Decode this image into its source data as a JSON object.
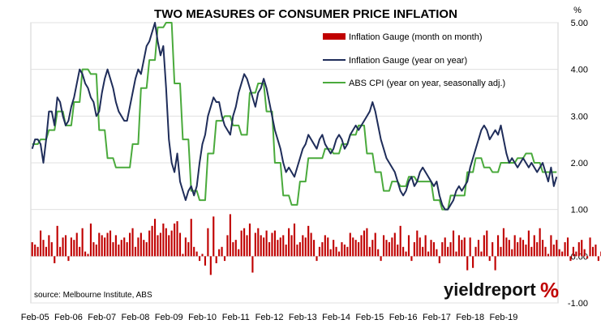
{
  "chart_data": {
    "type": "line",
    "title": "TWO MEASURES OF CONSUMER PRICE INFLATION",
    "unit_label": "%",
    "source": "source: Melbourne Institute, ABS",
    "logo": {
      "text": "yieldreport",
      "symbol": "%"
    },
    "x_tick_labels": [
      "Feb-05",
      "Feb-06",
      "Feb-07",
      "Feb-08",
      "Feb-09",
      "Feb-10",
      "Feb-11",
      "Feb-12",
      "Feb-13",
      "Feb-14",
      "Feb-15",
      "Feb-16",
      "Feb-17",
      "Feb-18",
      "Feb-19"
    ],
    "x_range": [
      "Jan-05",
      "Apr-19"
    ],
    "ylim": [
      -1.0,
      5.0
    ],
    "y_tick_labels": [
      "5.00",
      "4.00",
      "3.00",
      "2.00",
      "1.00",
      "0.00",
      "-1.00"
    ],
    "legend_position": "top-right",
    "grid": "horizontal",
    "colors": {
      "bars": "#c00000",
      "yoy": "#1f2d5a",
      "abs": "#4aaa3c"
    },
    "series": [
      {
        "name": "Inflation Gauge (month on month)",
        "type": "bar",
        "values": [
          0.3,
          0.25,
          0.2,
          0.55,
          0.35,
          0.2,
          0.45,
          0.3,
          -0.15,
          0.65,
          0.2,
          0.4,
          0.45,
          -0.1,
          0.4,
          0.35,
          0.5,
          0.2,
          0.6,
          0.1,
          0.05,
          0.7,
          0.3,
          0.25,
          0.5,
          0.45,
          0.4,
          0.5,
          0.55,
          0.3,
          0.45,
          0.25,
          0.35,
          0.4,
          0.3,
          0.5,
          0.6,
          0.2,
          0.4,
          0.5,
          0.35,
          0.3,
          0.55,
          0.65,
          0.8,
          0.45,
          0.5,
          0.7,
          0.6,
          0.45,
          0.55,
          0.7,
          0.75,
          0.5,
          0.05,
          0.4,
          0.3,
          0.8,
          0.2,
          0.1,
          -0.1,
          0.05,
          -0.2,
          0.6,
          -0.4,
          0.85,
          -0.15,
          0.15,
          0.2,
          -0.1,
          0.45,
          0.9,
          0.3,
          0.35,
          0.15,
          0.55,
          0.6,
          0.45,
          0.7,
          -0.35,
          0.5,
          0.6,
          0.45,
          0.4,
          0.55,
          0.3,
          0.5,
          0.55,
          0.35,
          0.4,
          0.45,
          0.25,
          0.6,
          0.45,
          0.7,
          0.25,
          0.3,
          0.45,
          0.4,
          0.65,
          0.5,
          0.35,
          -0.1,
          0.2,
          0.3,
          0.45,
          0.4,
          0.15,
          0.35,
          0.2,
          0.1,
          0.3,
          0.25,
          0.2,
          0.5,
          0.4,
          0.35,
          0.3,
          0.45,
          0.55,
          0.6,
          0.2,
          0.35,
          0.5,
          0.15,
          -0.1,
          0.45,
          0.35,
          0.3,
          0.4,
          0.5,
          0.25,
          0.65,
          0.2,
          0.1,
          0.45,
          -0.1,
          0.3,
          0.55,
          0.4,
          0.2,
          0.45,
          0.1,
          0.35,
          0.3,
          0.15,
          -0.15,
          0.3,
          0.4,
          0.2,
          0.3,
          0.55,
          0.1,
          0.45,
          0.35,
          0.4,
          -0.3,
          0.4,
          -0.25,
          0.2,
          0.35,
          0.1,
          0.45,
          0.55,
          -0.1,
          0.3,
          -0.3,
          0.45,
          0.2,
          0.6,
          0.4,
          0.35,
          0.15,
          0.45,
          0.3,
          0.4,
          0.35,
          0.25,
          0.55,
          0.2,
          0.45,
          0.3,
          0.6,
          0.35,
          0.2,
          0.05,
          0.45,
          0.25,
          0.35,
          0.15,
          0.1,
          0.3,
          0.4,
          -0.1,
          0.2,
          0.1,
          0.3,
          0.35,
          0.15,
          -0.05,
          0.4,
          0.2,
          0.25,
          -0.1,
          0.1,
          0.05
        ]
      },
      {
        "name": "Inflation Gauge (year on year)",
        "type": "line",
        "values": [
          2.3,
          2.5,
          2.5,
          2.4,
          2.0,
          2.5,
          3.1,
          3.1,
          2.8,
          3.4,
          3.3,
          3.0,
          2.8,
          2.9,
          3.2,
          3.4,
          3.7,
          4.0,
          3.9,
          3.7,
          3.6,
          3.4,
          3.3,
          3.0,
          3.1,
          3.5,
          3.8,
          4.0,
          3.8,
          3.6,
          3.3,
          3.1,
          3.0,
          2.9,
          2.9,
          3.2,
          3.5,
          3.8,
          4.0,
          3.9,
          4.2,
          4.5,
          4.6,
          4.8,
          5.0,
          4.6,
          4.3,
          4.5,
          3.6,
          2.5,
          2.0,
          1.8,
          2.2,
          1.6,
          1.4,
          1.2,
          1.4,
          1.5,
          1.3,
          1.5,
          2.0,
          2.4,
          2.6,
          3.0,
          3.2,
          3.4,
          3.3,
          3.3,
          3.0,
          2.8,
          2.7,
          2.6,
          3.0,
          3.2,
          3.5,
          3.7,
          3.9,
          3.8,
          3.6,
          3.4,
          3.2,
          3.5,
          3.6,
          3.8,
          3.6,
          3.3,
          3.0,
          2.7,
          2.5,
          2.3,
          2.0,
          1.8,
          1.9,
          1.8,
          1.7,
          1.9,
          2.1,
          2.3,
          2.4,
          2.6,
          2.5,
          2.4,
          2.3,
          2.5,
          2.6,
          2.4,
          2.3,
          2.2,
          2.3,
          2.5,
          2.6,
          2.5,
          2.3,
          2.4,
          2.6,
          2.7,
          2.8,
          2.7,
          2.8,
          2.9,
          3.0,
          3.1,
          3.3,
          3.1,
          2.8,
          2.5,
          2.3,
          2.1,
          2.0,
          1.9,
          1.8,
          1.6,
          1.4,
          1.3,
          1.4,
          1.6,
          1.7,
          1.5,
          1.6,
          1.8,
          1.9,
          1.8,
          1.7,
          1.6,
          1.5,
          1.6,
          1.3,
          1.1,
          1.0,
          1.0,
          1.1,
          1.2,
          1.4,
          1.5,
          1.4,
          1.5,
          1.6,
          1.9,
          2.1,
          2.3,
          2.5,
          2.7,
          2.8,
          2.7,
          2.5,
          2.6,
          2.7,
          2.6,
          2.8,
          2.5,
          2.2,
          2.0,
          2.1,
          2.0,
          1.9,
          2.0,
          2.1,
          2.0,
          1.9,
          2.0,
          1.9,
          1.8,
          1.9,
          2.0,
          1.8,
          1.6,
          1.9,
          1.5,
          1.7
        ]
      },
      {
        "name": "ABS CPI (year on year, seasonally adj.)",
        "type": "line",
        "values": [
          2.4,
          2.4,
          2.4,
          2.5,
          2.5,
          2.5,
          2.7,
          2.7,
          2.7,
          3.1,
          3.1,
          3.1,
          2.8,
          2.8,
          2.8,
          3.3,
          3.3,
          3.3,
          4.0,
          4.0,
          4.0,
          3.9,
          3.9,
          3.9,
          2.7,
          2.7,
          2.7,
          2.1,
          2.1,
          2.1,
          1.9,
          1.9,
          1.9,
          1.9,
          1.9,
          1.9,
          2.4,
          2.4,
          2.4,
          3.6,
          3.6,
          3.6,
          4.2,
          4.2,
          4.2,
          4.9,
          4.9,
          4.9,
          5.0,
          5.0,
          5.0,
          3.7,
          3.7,
          3.7,
          2.5,
          2.5,
          2.5,
          1.4,
          1.4,
          1.4,
          1.2,
          1.2,
          1.2,
          2.2,
          2.2,
          2.2,
          2.9,
          2.9,
          2.9,
          3.0,
          3.0,
          3.0,
          2.8,
          2.8,
          2.8,
          2.6,
          2.6,
          2.6,
          3.5,
          3.5,
          3.5,
          3.7,
          3.7,
          3.7,
          3.1,
          3.1,
          3.1,
          2.0,
          2.0,
          2.0,
          1.3,
          1.3,
          1.3,
          1.1,
          1.1,
          1.1,
          1.6,
          1.6,
          1.6,
          2.1,
          2.1,
          2.1,
          2.1,
          2.1,
          2.1,
          2.3,
          2.3,
          2.3,
          2.2,
          2.2,
          2.2,
          2.4,
          2.4,
          2.4,
          2.6,
          2.6,
          2.6,
          2.8,
          2.8,
          2.8,
          2.2,
          2.2,
          2.2,
          1.8,
          1.8,
          1.8,
          1.4,
          1.4,
          1.4,
          1.6,
          1.6,
          1.6,
          1.5,
          1.5,
          1.5,
          1.7,
          1.7,
          1.7,
          1.6,
          1.6,
          1.6,
          1.6,
          1.6,
          1.6,
          1.2,
          1.2,
          1.2,
          1.0,
          1.0,
          1.0,
          1.3,
          1.3,
          1.3,
          1.3,
          1.3,
          1.3,
          1.8,
          1.8,
          1.8,
          2.1,
          2.1,
          2.1,
          1.9,
          1.9,
          1.9,
          1.8,
          1.8,
          1.8,
          2.0,
          2.0,
          2.0,
          2.0,
          2.0,
          2.0,
          2.1,
          2.1,
          2.1,
          2.2,
          2.2,
          2.2,
          2.0,
          2.0,
          2.0,
          1.8,
          1.8,
          1.8,
          1.8,
          1.8,
          1.8
        ]
      }
    ]
  }
}
